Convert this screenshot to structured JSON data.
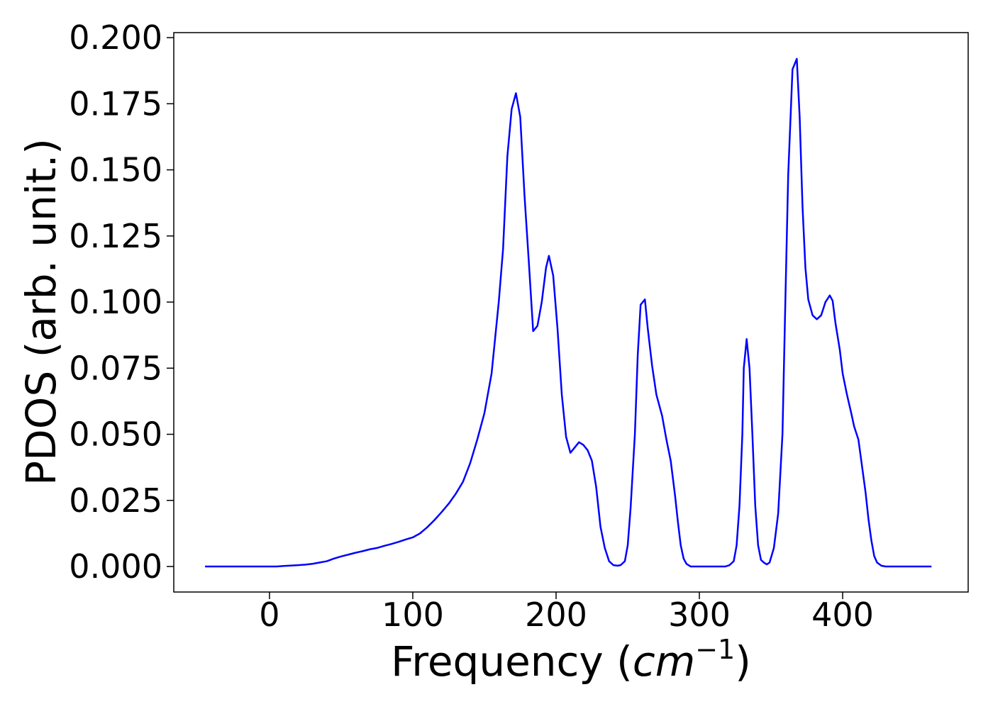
{
  "chart_data": {
    "type": "line",
    "x_label": [
      "Frequency (",
      "cm",
      "−1",
      ")"
    ],
    "y_label": "PDOS (arb. unit.)",
    "xlim": [
      -66.8,
      487.6
    ],
    "ylim": [
      -0.00965,
      0.2019
    ],
    "xticks": [
      0,
      100,
      200,
      300,
      400
    ],
    "yticks": [
      {
        "value": 0,
        "label": "0.000"
      },
      {
        "value": 0.025,
        "label": "0.025"
      },
      {
        "value": 0.05,
        "label": "0.050"
      },
      {
        "value": 0.075,
        "label": "0.075"
      },
      {
        "value": 0.1,
        "label": "0.100"
      },
      {
        "value": 0.125,
        "label": "0.125"
      },
      {
        "value": 0.15,
        "label": "0.150"
      },
      {
        "value": 0.175,
        "label": "0.175"
      },
      {
        "value": 0.2,
        "label": "0.200"
      }
    ],
    "x": [
      -45,
      5,
      10,
      20,
      25,
      30,
      35,
      40,
      45,
      50,
      55,
      60,
      65,
      70,
      75,
      80,
      85,
      90,
      95,
      100,
      105,
      110,
      115,
      120,
      125,
      130,
      135,
      140,
      145,
      150,
      155,
      160,
      163,
      166,
      169,
      172,
      175,
      178,
      181,
      184,
      187,
      190,
      193,
      195,
      198,
      201,
      204,
      207,
      210,
      213,
      216,
      219,
      222,
      225,
      228,
      231,
      234,
      237,
      240,
      243,
      245,
      248,
      250,
      252,
      255,
      257,
      259,
      262,
      264,
      267,
      270,
      274,
      277,
      280,
      283,
      285,
      287,
      289,
      291,
      294,
      318,
      321,
      324,
      326,
      328,
      330,
      331,
      333,
      335,
      337,
      339,
      341,
      343,
      345,
      347,
      349,
      352,
      355,
      358,
      360,
      362,
      365,
      368,
      370,
      372,
      374,
      376,
      379,
      382,
      385,
      388,
      391,
      393,
      395,
      398,
      400,
      403,
      406,
      408,
      411,
      413,
      416,
      418,
      420,
      422,
      424,
      427,
      430,
      462
    ],
    "series": [
      {
        "name": "PDOS",
        "color": "#0000ff",
        "values": [
          0,
          0,
          0.0002,
          0.0005,
          0.0007,
          0.001,
          0.0015,
          0.002,
          0.003,
          0.0038,
          0.0045,
          0.0052,
          0.0058,
          0.0065,
          0.007,
          0.0078,
          0.0085,
          0.0093,
          0.0102,
          0.011,
          0.0125,
          0.0148,
          0.0175,
          0.0205,
          0.0237,
          0.0275,
          0.032,
          0.039,
          0.048,
          0.058,
          0.073,
          0.1,
          0.12,
          0.155,
          0.173,
          0.179,
          0.17,
          0.14,
          0.115,
          0.089,
          0.091,
          0.1,
          0.113,
          0.1175,
          0.11,
          0.09,
          0.065,
          0.049,
          0.043,
          0.045,
          0.047,
          0.046,
          0.044,
          0.04,
          0.03,
          0.015,
          0.007,
          0.002,
          0.0005,
          0.0003,
          0.0005,
          0.002,
          0.008,
          0.022,
          0.05,
          0.08,
          0.099,
          0.101,
          0.09,
          0.076,
          0.065,
          0.057,
          0.048,
          0.04,
          0.027,
          0.017,
          0.008,
          0.003,
          0.001,
          0,
          0,
          0.0005,
          0.002,
          0.008,
          0.023,
          0.05,
          0.075,
          0.086,
          0.075,
          0.05,
          0.023,
          0.008,
          0.0025,
          0.0015,
          0.0008,
          0.0015,
          0.007,
          0.02,
          0.05,
          0.1,
          0.148,
          0.188,
          0.192,
          0.17,
          0.136,
          0.113,
          0.101,
          0.095,
          0.0935,
          0.095,
          0.1,
          0.1025,
          0.1005,
          0.092,
          0.082,
          0.073,
          0.065,
          0.058,
          0.053,
          0.048,
          0.04,
          0.028,
          0.018,
          0.01,
          0.004,
          0.0015,
          0.0003,
          0,
          0
        ]
      }
    ]
  }
}
